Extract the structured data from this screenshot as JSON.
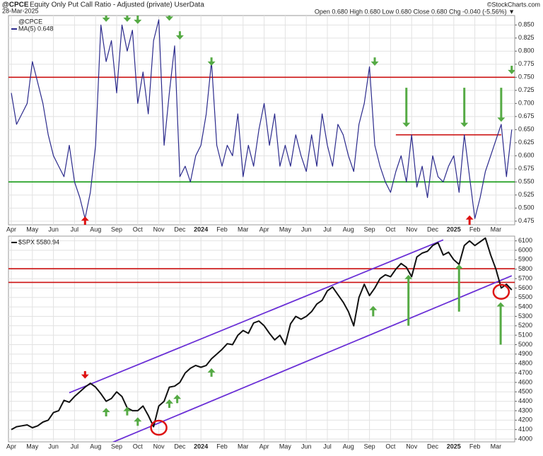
{
  "chart_data": [
    {
      "type": "line",
      "symbol": "@CPCE",
      "title": "Equity Only Put Call Ratio - Adjusted (private) UserData",
      "date": "28-Mar-2025",
      "quote": "Open 0.680  High 0.680  Low 0.680  Close 0.680  Chg -0.040 (-5.56%) ▼",
      "source": "©StockCharts.com",
      "legend_title": "@CPCE",
      "categories": [
        "Apr",
        null,
        null,
        null,
        "May",
        null,
        null,
        null,
        "Jun",
        null,
        null,
        null,
        "Jul",
        null,
        null,
        null,
        "Aug",
        null,
        null,
        null,
        "Sep",
        null,
        null,
        null,
        "Oct",
        null,
        null,
        null,
        "Nov",
        null,
        null,
        null,
        "Dec",
        null,
        null,
        null,
        "2024",
        null,
        null,
        null,
        "Feb",
        null,
        null,
        null,
        "Mar",
        null,
        null,
        null,
        "Apr",
        null,
        null,
        null,
        "May",
        null,
        null,
        null,
        "Jun",
        null,
        null,
        null,
        "Jul",
        null,
        null,
        null,
        "Aug",
        null,
        null,
        null,
        "Sep",
        null,
        null,
        null,
        "Oct",
        null,
        null,
        null,
        "Nov",
        null,
        null,
        null,
        "Dec",
        null,
        null,
        null,
        "2025",
        null,
        null,
        null,
        "Feb",
        null,
        null,
        null,
        "Mar",
        null,
        null,
        null
      ],
      "series": [
        {
          "name": "MA(5) 0.648",
          "color": "#2b2a8c",
          "values": [
            0.72,
            0.66,
            0.68,
            0.7,
            0.78,
            0.74,
            0.7,
            0.64,
            0.6,
            0.58,
            0.56,
            0.62,
            0.55,
            0.52,
            0.48,
            0.53,
            0.62,
            0.85,
            0.78,
            0.82,
            0.72,
            0.85,
            0.8,
            0.84,
            0.7,
            0.76,
            0.68,
            0.82,
            0.86,
            0.62,
            0.72,
            0.81,
            0.56,
            0.58,
            0.55,
            0.6,
            0.62,
            0.68,
            0.78,
            0.62,
            0.58,
            0.62,
            0.6,
            0.68,
            0.56,
            0.62,
            0.58,
            0.65,
            0.7,
            0.62,
            0.68,
            0.58,
            0.62,
            0.58,
            0.64,
            0.6,
            0.57,
            0.64,
            0.58,
            0.68,
            0.62,
            0.58,
            0.66,
            0.64,
            0.6,
            0.57,
            0.66,
            0.7,
            0.77,
            0.62,
            0.58,
            0.55,
            0.53,
            0.57,
            0.6,
            0.55,
            0.64,
            0.54,
            0.58,
            0.52,
            0.6,
            0.56,
            0.55,
            0.58,
            0.6,
            0.53,
            0.64,
            0.56,
            0.48,
            0.52,
            0.57,
            0.6,
            0.63,
            0.66,
            0.56,
            0.65
          ]
        }
      ],
      "ylim": [
        0.468,
        0.868
      ],
      "yticks": [
        {
          "value": 0.475,
          "label": "0.475"
        },
        {
          "value": 0.5,
          "label": "0.500"
        },
        {
          "value": 0.525,
          "label": "0.525"
        },
        {
          "value": 0.55,
          "label": "0.550"
        },
        {
          "value": 0.575,
          "label": "0.575"
        },
        {
          "value": 0.6,
          "label": "0.600"
        },
        {
          "value": 0.625,
          "label": "0.625"
        },
        {
          "value": 0.65,
          "label": "0.650"
        },
        {
          "value": 0.675,
          "label": "0.675"
        },
        {
          "value": 0.7,
          "label": "0.700"
        },
        {
          "value": 0.725,
          "label": "0.725"
        },
        {
          "value": 0.75,
          "label": "0.750"
        },
        {
          "value": 0.775,
          "label": "0.775"
        },
        {
          "value": 0.8,
          "label": "0.800"
        },
        {
          "value": 0.825,
          "label": "0.825"
        },
        {
          "value": 0.85,
          "label": "0.850"
        }
      ],
      "grid": true,
      "hlines": [
        {
          "value": 0.75,
          "color": "#cc1111"
        },
        {
          "value": 0.55,
          "color": "#119911"
        },
        {
          "value": 0.64,
          "x": [
            73,
            93
          ],
          "color": "#cc1111"
        }
      ],
      "arrows": [
        {
          "x": 18,
          "from": 0.872,
          "to": 0.856,
          "color": "#55aa44"
        },
        {
          "x": 22,
          "from": 0.872,
          "to": 0.856,
          "color": "#55aa44"
        },
        {
          "x": 24,
          "from": 0.868,
          "to": 0.852,
          "color": "#55aa44"
        },
        {
          "x": 30,
          "from": 0.874,
          "to": 0.858,
          "color": "#55aa44"
        },
        {
          "x": 32,
          "from": 0.838,
          "to": 0.822,
          "color": "#55aa44"
        },
        {
          "x": 38,
          "from": 0.788,
          "to": 0.772,
          "color": "#55aa44"
        },
        {
          "x": 69,
          "from": 0.788,
          "to": 0.772,
          "color": "#55aa44"
        },
        {
          "x": 75,
          "from": 0.73,
          "to": 0.655,
          "color": "#55aa44"
        },
        {
          "x": 86,
          "from": 0.73,
          "to": 0.655,
          "color": "#55aa44"
        },
        {
          "x": 93,
          "from": 0.73,
          "to": 0.665,
          "color": "#55aa44"
        },
        {
          "x": 95,
          "from": 0.772,
          "to": 0.756,
          "color": "#55aa44"
        },
        {
          "x": 14,
          "from": 0.468,
          "to": 0.484,
          "color": "#dd1111"
        },
        {
          "x": 87,
          "from": 0.468,
          "to": 0.486,
          "color": "#dd1111"
        }
      ]
    },
    {
      "type": "line",
      "categories": [
        "Apr",
        null,
        null,
        null,
        "May",
        null,
        null,
        null,
        "Jun",
        null,
        null,
        null,
        "Jul",
        null,
        null,
        null,
        "Aug",
        null,
        null,
        null,
        "Sep",
        null,
        null,
        null,
        "Oct",
        null,
        null,
        null,
        "Nov",
        null,
        null,
        null,
        "Dec",
        null,
        null,
        null,
        "2024",
        null,
        null,
        null,
        "Feb",
        null,
        null,
        null,
        "Mar",
        null,
        null,
        null,
        "Apr",
        null,
        null,
        null,
        "May",
        null,
        null,
        null,
        "Jun",
        null,
        null,
        null,
        "Jul",
        null,
        null,
        null,
        "Aug",
        null,
        null,
        null,
        "Sep",
        null,
        null,
        null,
        "Oct",
        null,
        null,
        null,
        "Nov",
        null,
        null,
        null,
        "Dec",
        null,
        null,
        null,
        "2025",
        null,
        null,
        null,
        "Feb",
        null,
        null,
        null,
        "Mar",
        null,
        null,
        null
      ],
      "series": [
        {
          "name": "$SPX 5580.94",
          "color": "#111111",
          "values": [
            4100,
            4130,
            4140,
            4150,
            4120,
            4140,
            4180,
            4200,
            4280,
            4300,
            4410,
            4390,
            4450,
            4500,
            4550,
            4590,
            4550,
            4480,
            4400,
            4430,
            4500,
            4450,
            4330,
            4300,
            4300,
            4350,
            4250,
            4130,
            4350,
            4400,
            4550,
            4560,
            4600,
            4700,
            4750,
            4780,
            4760,
            4780,
            4850,
            4900,
            4950,
            5010,
            5000,
            5100,
            5150,
            5120,
            5230,
            5250,
            5200,
            5120,
            5050,
            5100,
            5000,
            5220,
            5300,
            5270,
            5300,
            5350,
            5430,
            5470,
            5570,
            5610,
            5530,
            5450,
            5350,
            5200,
            5500,
            5640,
            5520,
            5600,
            5700,
            5740,
            5720,
            5800,
            5860,
            5820,
            5720,
            5930,
            5970,
            5990,
            6050,
            6080,
            5950,
            5980,
            5900,
            5850,
            6050,
            6100,
            6050,
            6090,
            6130,
            5950,
            5800,
            5600,
            5640,
            5580
          ]
        }
      ],
      "ylim": [
        3970,
        6150
      ],
      "yticks": [
        4000,
        4100,
        4200,
        4300,
        4400,
        4500,
        4600,
        4700,
        4800,
        4900,
        5000,
        5100,
        5200,
        5300,
        5400,
        5500,
        5600,
        5700,
        5800,
        5900,
        6000,
        6100
      ],
      "grid": true,
      "hlines": [
        {
          "value": 5805,
          "color": "#cc1111"
        },
        {
          "value": 5660,
          "color": "#cc1111"
        }
      ],
      "trendlines": [
        {
          "x": [
            11,
            82
          ],
          "values": [
            4490,
            6110
          ],
          "color": "#6a2fd6"
        },
        {
          "x": [
            16,
            95
          ],
          "values": [
            3890,
            5730
          ],
          "color": "#6a2fd6"
        }
      ],
      "circles": [
        {
          "x": 28,
          "value": 4120,
          "color": "#dd1111"
        },
        {
          "x": 93,
          "value": 5560,
          "color": "#dd1111"
        }
      ],
      "arrows": [
        {
          "x": 14,
          "from": 4720,
          "to": 4640,
          "color": "#dd1111"
        },
        {
          "x": 18,
          "from": 4240,
          "to": 4330,
          "color": "#55aa44"
        },
        {
          "x": 22,
          "from": 4250,
          "to": 4340,
          "color": "#55aa44"
        },
        {
          "x": 24,
          "from": 4140,
          "to": 4230,
          "color": "#55aa44"
        },
        {
          "x": 30,
          "from": 4330,
          "to": 4420,
          "color": "#55aa44"
        },
        {
          "x": 31.5,
          "from": 4380,
          "to": 4470,
          "color": "#55aa44"
        },
        {
          "x": 38,
          "from": 4660,
          "to": 4750,
          "color": "#55aa44"
        },
        {
          "x": 68.7,
          "from": 5300,
          "to": 5410,
          "color": "#55aa44"
        },
        {
          "x": 75.4,
          "from": 5200,
          "to": 5740,
          "color": "#55aa44"
        },
        {
          "x": 85,
          "from": 5350,
          "to": 5850,
          "color": "#55aa44"
        },
        {
          "x": 92.9,
          "from": 5000,
          "to": 5450,
          "color": "#55aa44"
        }
      ]
    }
  ]
}
